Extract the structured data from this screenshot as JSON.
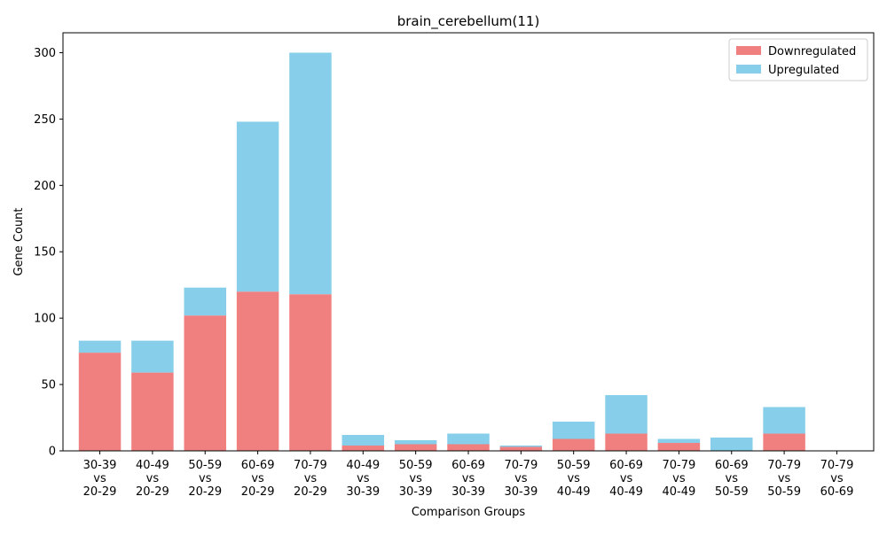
{
  "chart_data": {
    "type": "bar",
    "stacked": true,
    "title": "brain_cerebellum(11)",
    "xlabel": "Comparison Groups",
    "ylabel": "Gene Count",
    "ylim": [
      0,
      315
    ],
    "yticks": [
      0,
      50,
      100,
      150,
      200,
      250,
      300
    ],
    "legend_position": "top-right",
    "grid": false,
    "categories": [
      [
        "30-39",
        "vs",
        "20-29"
      ],
      [
        "40-49",
        "vs",
        "20-29"
      ],
      [
        "50-59",
        "vs",
        "20-29"
      ],
      [
        "60-69",
        "vs",
        "20-29"
      ],
      [
        "70-79",
        "vs",
        "20-29"
      ],
      [
        "40-49",
        "vs",
        "30-39"
      ],
      [
        "50-59",
        "vs",
        "30-39"
      ],
      [
        "60-69",
        "vs",
        "30-39"
      ],
      [
        "70-79",
        "vs",
        "30-39"
      ],
      [
        "50-59",
        "vs",
        "40-49"
      ],
      [
        "60-69",
        "vs",
        "40-49"
      ],
      [
        "70-79",
        "vs",
        "40-49"
      ],
      [
        "60-69",
        "vs",
        "50-59"
      ],
      [
        "70-79",
        "vs",
        "50-59"
      ],
      [
        "70-79",
        "vs",
        "60-69"
      ]
    ],
    "series": [
      {
        "name": "Downregulated",
        "color": "#f08080",
        "values": [
          74,
          59,
          102,
          120,
          118,
          4,
          5,
          5,
          3,
          9,
          13,
          6,
          0,
          13,
          0
        ]
      },
      {
        "name": "Upregulated",
        "color": "#87ceeb",
        "values": [
          9,
          24,
          21,
          128,
          182,
          8,
          3,
          8,
          1,
          13,
          29,
          3,
          10,
          20,
          0
        ]
      }
    ]
  }
}
